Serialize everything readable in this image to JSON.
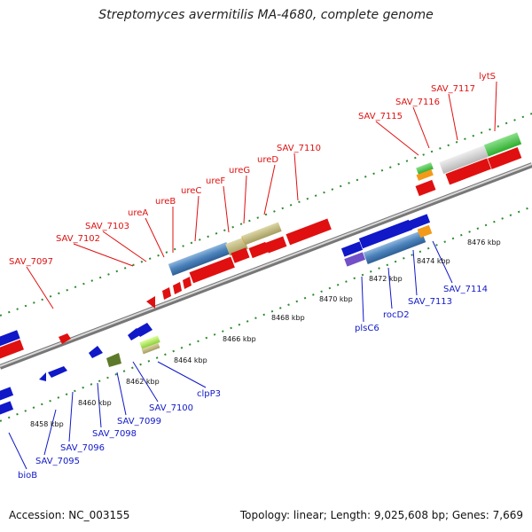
{
  "title": "Streptomyces avermitilis MA-4680, complete genome",
  "footer": {
    "accession": "Accession: NC_003155",
    "summary": "Topology: linear; Length: 9,025,608 bp; Genes: 7,669"
  },
  "colors": {
    "forward": "#e01010",
    "reverse": "#1018c8",
    "backbone": "#9a9a9a",
    "ruler": "#2c8a2c"
  },
  "kbp_ticks": [
    "8458 kbp",
    "8460 kbp",
    "8462 kbp",
    "8464 kbp",
    "8466 kbp",
    "8468 kbp",
    "8470 kbp",
    "8472 kbp",
    "8474 kbp",
    "8476 kbp"
  ],
  "forward_labels": [
    "SAV_7097",
    "SAV_7102",
    "SAV_7103",
    "ureA",
    "ureB",
    "ureC",
    "ureF",
    "ureG",
    "ureD",
    "SAV_7110",
    "SAV_7115",
    "SAV_7116",
    "SAV_7117",
    "lytS"
  ],
  "reverse_labels": [
    "bioB",
    "SAV_7095",
    "SAV_7096",
    "SAV_7098",
    "SAV_7099",
    "SAV_7100",
    "clpP3",
    "plsC6",
    "rocD2",
    "SAV_7113",
    "SAV_7114"
  ]
}
